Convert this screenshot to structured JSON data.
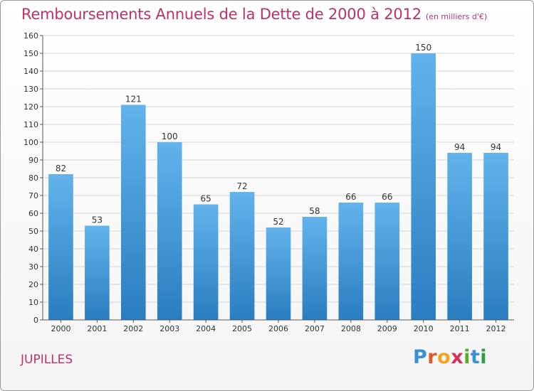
{
  "title": "Remboursements Annuels de la Dette de 2000 à 2012",
  "subtitle": "(en milliers d'€)",
  "town": "JUPILLES",
  "logo": {
    "letters": [
      "P",
      "r",
      "o",
      "x",
      "i",
      "t",
      "i"
    ],
    "colors": [
      "#3a8fd6",
      "#e05a2a",
      "#f2a51c",
      "#d8325a",
      "#5aaa2f",
      "#3a8fd6",
      "#2f9e3e"
    ]
  },
  "colors": {
    "title": "#c0306a",
    "bar_light": "#62b3ec",
    "bar_dark": "#2a7dc0",
    "grid": "#d4d4d4",
    "axis": "#555555"
  },
  "chart_data": {
    "type": "bar",
    "categories": [
      "2000",
      "2001",
      "2002",
      "2003",
      "2004",
      "2005",
      "2006",
      "2007",
      "2008",
      "2009",
      "2010",
      "2011",
      "2012"
    ],
    "values": [
      82,
      53,
      121,
      100,
      65,
      72,
      52,
      58,
      66,
      66,
      150,
      94,
      94
    ],
    "ylim": [
      0,
      160
    ],
    "yticks": [
      0,
      10,
      20,
      30,
      40,
      50,
      60,
      70,
      80,
      90,
      100,
      110,
      120,
      130,
      140,
      150,
      160
    ],
    "grid": true,
    "data_labels": true
  }
}
